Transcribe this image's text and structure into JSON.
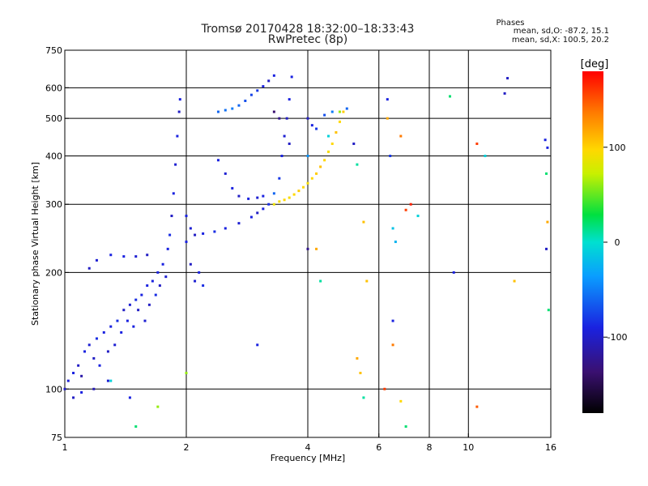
{
  "header": {
    "title_line1": "Tromsø 20170428 18:32:00–18:33:43",
    "title_line2": "RwPretec (8p)",
    "stats_title": "Phases",
    "stats_o": "mean, sd,O: -87.2, 15.1",
    "stats_x": "mean, sd,X: 100.5, 20.2"
  },
  "chart_data": {
    "type": "scatter",
    "title": "Tromsø 20170428 18:32:00–18:33:43",
    "subtitle": "RwPretec (8p)",
    "xlabel": "Frequency [MHz]",
    "ylabel": "Stationary phase Virtual Height [km]",
    "x_scale": "log",
    "y_scale": "log",
    "xlim": [
      1,
      16
    ],
    "ylim": [
      75,
      750
    ],
    "x_ticks": [
      1,
      2,
      4,
      6,
      8,
      10,
      16
    ],
    "x_tick_labels": [
      "1",
      "2",
      "4",
      "6",
      "8",
      "10",
      "16"
    ],
    "y_ticks": [
      75,
      100,
      200,
      300,
      400,
      500,
      600,
      750
    ],
    "y_tick_labels": [
      "75",
      "100",
      "200",
      "300",
      "400",
      "500",
      "600",
      "750"
    ],
    "grid": true,
    "colorbar": {
      "label": "[deg]",
      "min": -180,
      "max": 180,
      "ticks": [
        100,
        0,
        -100
      ],
      "tick_labels": [
        "100",
        "0",
        "-100"
      ]
    },
    "color_value": "phase (deg)",
    "series": [
      {
        "points": [
          [
            1.0,
            100,
            -110
          ],
          [
            1.02,
            105,
            -105
          ],
          [
            1.05,
            110,
            -100
          ],
          [
            1.08,
            115,
            -110
          ],
          [
            1.1,
            108,
            -120
          ],
          [
            1.12,
            125,
            -100
          ],
          [
            1.15,
            130,
            -105
          ],
          [
            1.18,
            120,
            -110
          ],
          [
            1.2,
            135,
            -95
          ],
          [
            1.22,
            115,
            -100
          ],
          [
            1.25,
            140,
            -100
          ],
          [
            1.28,
            125,
            -110
          ],
          [
            1.3,
            145,
            -100
          ],
          [
            1.33,
            130,
            -105
          ],
          [
            1.35,
            150,
            -95
          ],
          [
            1.38,
            140,
            -100
          ],
          [
            1.4,
            160,
            -110
          ],
          [
            1.43,
            150,
            -100
          ],
          [
            1.45,
            165,
            -105
          ],
          [
            1.48,
            145,
            -100
          ],
          [
            1.5,
            170,
            -95
          ],
          [
            1.52,
            160,
            -110
          ],
          [
            1.55,
            175,
            -100
          ],
          [
            1.58,
            150,
            -105
          ],
          [
            1.6,
            185,
            -100
          ],
          [
            1.62,
            165,
            -110
          ],
          [
            1.65,
            190,
            -100
          ],
          [
            1.68,
            175,
            -95
          ],
          [
            1.7,
            200,
            -100
          ],
          [
            1.72,
            185,
            -110
          ],
          [
            1.75,
            210,
            -100
          ],
          [
            1.78,
            195,
            -105
          ],
          [
            1.8,
            230,
            -100
          ],
          [
            1.82,
            250,
            -95
          ],
          [
            1.84,
            280,
            -110
          ],
          [
            1.86,
            320,
            -100
          ],
          [
            1.88,
            380,
            -105
          ],
          [
            1.9,
            450,
            -100
          ],
          [
            1.92,
            520,
            -110
          ],
          [
            1.93,
            560,
            -100
          ],
          [
            1.15,
            205,
            -110
          ],
          [
            1.2,
            215,
            -105
          ],
          [
            1.3,
            222,
            -100
          ],
          [
            1.4,
            220,
            -100
          ],
          [
            1.5,
            220,
            -105
          ],
          [
            1.6,
            222,
            -110
          ],
          [
            1.05,
            95,
            -110
          ],
          [
            1.1,
            98,
            -100
          ],
          [
            1.18,
            100,
            -115
          ],
          [
            1.28,
            105,
            -105
          ],
          [
            1.45,
            95,
            -100
          ],
          [
            2.0,
            280,
            -100
          ],
          [
            2.05,
            260,
            -105
          ],
          [
            2.1,
            250,
            -110
          ],
          [
            2.2,
            252,
            -100
          ],
          [
            2.35,
            255,
            -95
          ],
          [
            2.5,
            260,
            -100
          ],
          [
            2.7,
            268,
            -105
          ],
          [
            2.9,
            278,
            -100
          ],
          [
            3.0,
            285,
            -110
          ],
          [
            3.1,
            292,
            -100
          ],
          [
            3.2,
            300,
            -95
          ],
          [
            2.0,
            240,
            -100
          ],
          [
            2.05,
            210,
            -110
          ],
          [
            2.1,
            190,
            -105
          ],
          [
            2.15,
            200,
            -100
          ],
          [
            2.2,
            185,
            -95
          ],
          [
            2.4,
            390,
            -100
          ],
          [
            2.5,
            360,
            -105
          ],
          [
            2.6,
            330,
            -100
          ],
          [
            2.7,
            315,
            -110
          ],
          [
            2.85,
            310,
            -100
          ],
          [
            3.0,
            312,
            -105
          ],
          [
            3.1,
            315,
            -100
          ],
          [
            2.4,
            520,
            -70
          ],
          [
            2.5,
            525,
            -65
          ],
          [
            2.6,
            530,
            -60
          ],
          [
            2.7,
            540,
            -70
          ],
          [
            2.8,
            555,
            -80
          ],
          [
            2.9,
            575,
            -85
          ],
          [
            3.0,
            590,
            -90
          ],
          [
            3.1,
            605,
            -100
          ],
          [
            3.2,
            625,
            -110
          ],
          [
            3.3,
            645,
            -100
          ],
          [
            3.3,
            320,
            -70
          ],
          [
            3.4,
            350,
            -90
          ],
          [
            3.45,
            400,
            -100
          ],
          [
            3.5,
            450,
            -105
          ],
          [
            3.55,
            500,
            -110
          ],
          [
            3.6,
            560,
            -100
          ],
          [
            3.65,
            640,
            -100
          ],
          [
            3.3,
            520,
            -140
          ],
          [
            3.4,
            500,
            -130
          ],
          [
            3.6,
            430,
            -110
          ],
          [
            3.3,
            300,
            90
          ],
          [
            3.4,
            305,
            95
          ],
          [
            3.5,
            308,
            100
          ],
          [
            3.6,
            312,
            95
          ],
          [
            3.7,
            318,
            100
          ],
          [
            3.8,
            325,
            105
          ],
          [
            3.9,
            332,
            100
          ],
          [
            4.0,
            340,
            95
          ],
          [
            4.1,
            350,
            100
          ],
          [
            4.2,
            360,
            105
          ],
          [
            4.3,
            375,
            110
          ],
          [
            4.4,
            390,
            100
          ],
          [
            4.5,
            410,
            95
          ],
          [
            4.6,
            430,
            100
          ],
          [
            4.7,
            460,
            110
          ],
          [
            4.8,
            490,
            100
          ],
          [
            4.9,
            520,
            105
          ],
          [
            4.0,
            500,
            -110
          ],
          [
            4.1,
            480,
            -100
          ],
          [
            4.2,
            470,
            -90
          ],
          [
            4.4,
            510,
            -80
          ],
          [
            4.6,
            520,
            -60
          ],
          [
            5.0,
            530,
            -70
          ],
          [
            4.0,
            400,
            -50
          ],
          [
            4.5,
            450,
            -10
          ],
          [
            4.8,
            520,
            60
          ],
          [
            6.3,
            560,
            -100
          ],
          [
            6.3,
            500,
            120
          ],
          [
            6.4,
            400,
            -90
          ],
          [
            6.5,
            260,
            -20
          ],
          [
            6.6,
            240,
            -30
          ],
          [
            6.8,
            450,
            140
          ],
          [
            7.0,
            290,
            160
          ],
          [
            7.2,
            300,
            170
          ],
          [
            7.5,
            280,
            -10
          ],
          [
            6.5,
            150,
            -100
          ],
          [
            6.5,
            130,
            140
          ],
          [
            6.2,
            100,
            160
          ],
          [
            6.8,
            93,
            100
          ],
          [
            7.0,
            80,
            20
          ],
          [
            5.2,
            430,
            -110
          ],
          [
            5.3,
            380,
            10
          ],
          [
            5.5,
            270,
            110
          ],
          [
            5.6,
            190,
            110
          ],
          [
            5.3,
            120,
            120
          ],
          [
            5.4,
            110,
            110
          ],
          [
            5.5,
            95,
            10
          ],
          [
            4.3,
            190,
            10
          ],
          [
            4.0,
            230,
            -130
          ],
          [
            4.2,
            230,
            120
          ],
          [
            9.0,
            570,
            20
          ],
          [
            9.2,
            200,
            -100
          ],
          [
            10.5,
            430,
            160
          ],
          [
            12.3,
            580,
            -110
          ],
          [
            12.5,
            635,
            -110
          ],
          [
            11.0,
            400,
            -10
          ],
          [
            13.0,
            190,
            110
          ],
          [
            15.5,
            440,
            -100
          ],
          [
            15.7,
            420,
            -100
          ],
          [
            15.6,
            360,
            20
          ],
          [
            15.7,
            270,
            120
          ],
          [
            15.8,
            160,
            20
          ],
          [
            15.6,
            230,
            -110
          ],
          [
            10.5,
            90,
            150
          ],
          [
            1.5,
            80,
            20
          ],
          [
            1.7,
            90,
            60
          ],
          [
            2.0,
            110,
            60
          ],
          [
            1.3,
            105,
            -10
          ],
          [
            3.0,
            130,
            -100
          ]
        ]
      }
    ]
  }
}
